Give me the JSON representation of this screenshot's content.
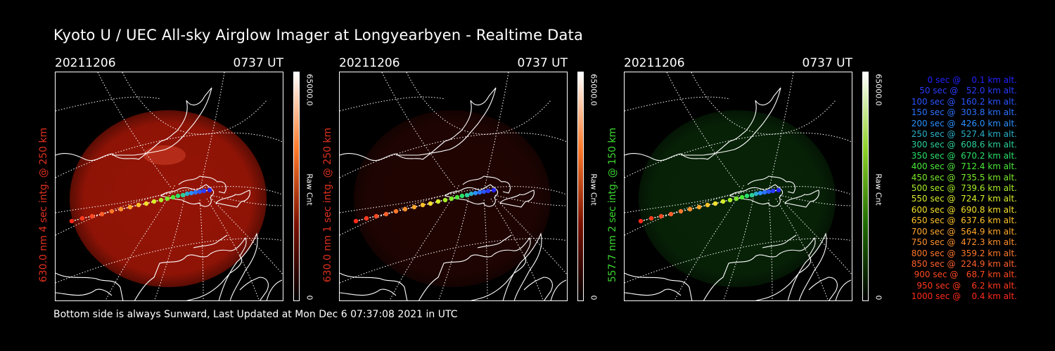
{
  "title": "Kyoto U / UEC All-sky Airglow Imager at Longyearbyen - Realtime Data",
  "footer": "Bottom side is always Sunward, Last Updated at Mon Dec  6 07:37:08 2021 in UTC",
  "panels": [
    {
      "date": "20211206",
      "time": "0737 UT",
      "side_label": "630.0 nm 4 sec intg. @ 250 km",
      "side_color": "#e0301e",
      "cbar_max": "65000.0",
      "cbar_unit": "Raw Cnt",
      "cbar_min": "0",
      "glow_color": "#b01808",
      "glow_level": 0.85,
      "cbar_colors": [
        "#ffffff",
        "#ff7a2a",
        "#7a1000",
        "#000000"
      ]
    },
    {
      "date": "20211206",
      "time": "0737 UT",
      "side_label": "630.0 nm 1 sec intg. @ 250 km",
      "side_color": "#e0301e",
      "cbar_max": "65000.0",
      "cbar_unit": "Raw Cnt",
      "cbar_min": "0",
      "glow_color": "#3a0804",
      "glow_level": 0.55,
      "cbar_colors": [
        "#ffffff",
        "#ff7a2a",
        "#7a1000",
        "#000000"
      ]
    },
    {
      "date": "20211206",
      "time": "0737 UT",
      "side_label": "557.7 nm 2 sec intg. @ 150 km",
      "side_color": "#3ad62e",
      "cbar_max": "65000.0",
      "cbar_unit": "Raw Cnt",
      "cbar_min": "0",
      "glow_color": "#0c3a0c",
      "glow_level": 0.6,
      "cbar_colors": [
        "#ffffff",
        "#8fd12a",
        "#1e6a00",
        "#000000"
      ]
    }
  ],
  "legend": [
    {
      "text": "   0 sec @    0.1 km alt.",
      "color": "#2222ff"
    },
    {
      "text": "  50 sec @   52.0 km alt.",
      "color": "#2a3cff"
    },
    {
      "text": " 100 sec @  160.2 km alt.",
      "color": "#2a55ff"
    },
    {
      "text": " 150 sec @  303.8 km alt.",
      "color": "#2a72ff"
    },
    {
      "text": " 200 sec @  426.0 km alt.",
      "color": "#2a90ff"
    },
    {
      "text": " 250 sec @  527.4 km alt.",
      "color": "#2ab0c8"
    },
    {
      "text": " 300 sec @  608.6 km alt.",
      "color": "#2ad09a"
    },
    {
      "text": " 350 sec @  670.2 km alt.",
      "color": "#2ae06a"
    },
    {
      "text": " 400 sec @  712.4 km alt.",
      "color": "#4ae83a"
    },
    {
      "text": " 450 sec @  735.5 km alt.",
      "color": "#7aea2a"
    },
    {
      "text": " 500 sec @  739.6 km alt.",
      "color": "#a8ee2a"
    },
    {
      "text": " 550 sec @  724.7 km alt.",
      "color": "#d8ee2a"
    },
    {
      "text": " 600 sec @  690.8 km alt.",
      "color": "#f5e02a"
    },
    {
      "text": " 650 sec @  637.6 km alt.",
      "color": "#ffc22a"
    },
    {
      "text": " 700 sec @  564.9 km alt.",
      "color": "#ffa82a"
    },
    {
      "text": " 750 sec @  472.3 km alt.",
      "color": "#ff902a"
    },
    {
      "text": " 800 sec @  359.2 km alt.",
      "color": "#ff782a"
    },
    {
      "text": " 850 sec @  224.9 km alt.",
      "color": "#ff602a"
    },
    {
      "text": " 900 sec @   68.7 km alt.",
      "color": "#ff4a22"
    },
    {
      "text": " 950 sec @    6.2 km alt.",
      "color": "#ff3a1e"
    },
    {
      "text": "1000 sec @    0.4 km alt.",
      "color": "#ff2a1a"
    }
  ]
}
